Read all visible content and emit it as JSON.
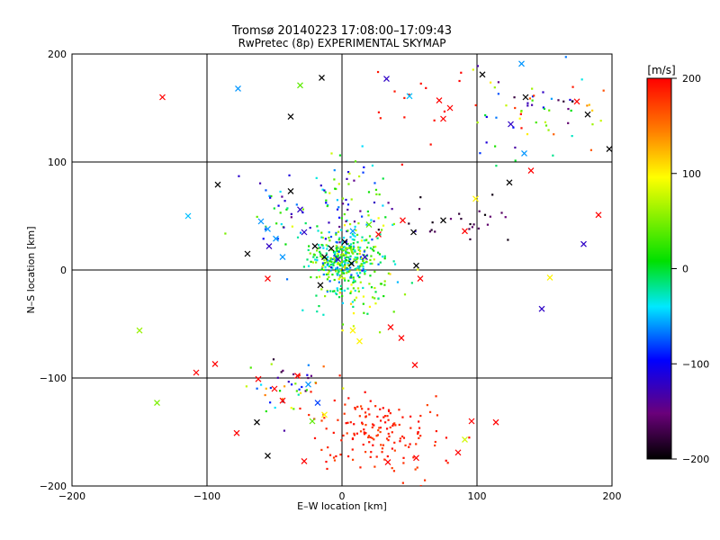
{
  "title_line1": "Tromsø 20140223 17:08:00–17:09:43",
  "title_line2": "RwPretec (8p) EXPERIMENTAL SKYMAP",
  "xlabel": "E–W location [km]",
  "ylabel": "N–S location [km]",
  "colorbar": {
    "label": "[m/s]",
    "ticks": [
      200,
      100,
      0,
      -100,
      -200
    ],
    "range": [
      -200,
      200
    ],
    "colors": [
      "#000000",
      "#6a007a",
      "#0000ff",
      "#00e8ff",
      "#00e000",
      "#ffff00",
      "#ff8000",
      "#ff0000"
    ]
  },
  "chart_data": {
    "type": "scatter",
    "xlim": [
      -200,
      200
    ],
    "ylim": [
      -200,
      200
    ],
    "xticks": [
      -200,
      -100,
      0,
      100,
      200
    ],
    "yticks": [
      -200,
      -100,
      0,
      100,
      200
    ],
    "grid": true,
    "marker_legend": "dots = small point samples, x = cross samples; color = velocity [m/s]",
    "clusters": [
      {
        "cx": 0,
        "cy": 10,
        "sx": 12,
        "sy": 12,
        "n": 320,
        "vmin": -80,
        "vmax": 80
      },
      {
        "cx": 2,
        "cy": 55,
        "sx": 22,
        "sy": 25,
        "n": 110,
        "vmin": -150,
        "vmax": 100
      },
      {
        "cx": 5,
        "cy": -20,
        "sx": 20,
        "sy": 18,
        "n": 80,
        "vmin": -50,
        "vmax": 120
      },
      {
        "cx": 25,
        "cy": -150,
        "sx": 25,
        "sy": 18,
        "n": 160,
        "vmin": 170,
        "vmax": 200
      },
      {
        "cx": -40,
        "cy": -110,
        "sx": 18,
        "sy": 12,
        "n": 45,
        "vmin": -200,
        "vmax": 200
      },
      {
        "cx": 145,
        "cy": 150,
        "sx": 28,
        "sy": 22,
        "n": 70,
        "vmin": -200,
        "vmax": 200
      },
      {
        "cx": 90,
        "cy": 45,
        "sx": 20,
        "sy": 10,
        "n": 25,
        "vmin": -200,
        "vmax": -150
      },
      {
        "cx": 55,
        "cy": 150,
        "sx": 20,
        "sy": 20,
        "n": 15,
        "vmin": 190,
        "vmax": 200
      },
      {
        "cx": -45,
        "cy": 50,
        "sx": 15,
        "sy": 15,
        "n": 25,
        "vmin": -150,
        "vmax": 50
      }
    ],
    "crosses": [
      {
        "x": -133,
        "y": 160,
        "v": 200
      },
      {
        "x": -92,
        "y": 79,
        "v": -200
      },
      {
        "x": -114,
        "y": 50,
        "v": -50
      },
      {
        "x": -150,
        "y": -56,
        "v": 60
      },
      {
        "x": -137,
        "y": -123,
        "v": 50
      },
      {
        "x": -108,
        "y": -95,
        "v": 200
      },
      {
        "x": -94,
        "y": -87,
        "v": 200
      },
      {
        "x": -77,
        "y": 168,
        "v": -60
      },
      {
        "x": -38,
        "y": 142,
        "v": -200
      },
      {
        "x": -31,
        "y": 171,
        "v": 40
      },
      {
        "x": -15,
        "y": 178,
        "v": -200
      },
      {
        "x": 33,
        "y": 177,
        "v": -120
      },
      {
        "x": 50,
        "y": 161,
        "v": -50
      },
      {
        "x": 72,
        "y": 157,
        "v": 200
      },
      {
        "x": 80,
        "y": 150,
        "v": 200
      },
      {
        "x": 75,
        "y": 140,
        "v": 200
      },
      {
        "x": 104,
        "y": 181,
        "v": -200
      },
      {
        "x": 133,
        "y": 191,
        "v": -60
      },
      {
        "x": 125,
        "y": 135,
        "v": -120
      },
      {
        "x": 136,
        "y": 160,
        "v": -200
      },
      {
        "x": 174,
        "y": 156,
        "v": 200
      },
      {
        "x": 182,
        "y": 144,
        "v": -200
      },
      {
        "x": 198,
        "y": 112,
        "v": -200
      },
      {
        "x": 140,
        "y": 92,
        "v": 200
      },
      {
        "x": 124,
        "y": 81,
        "v": -200
      },
      {
        "x": 135,
        "y": 108,
        "v": -60
      },
      {
        "x": 190,
        "y": 51,
        "v": 200
      },
      {
        "x": 179,
        "y": 24,
        "v": -120
      },
      {
        "x": 148,
        "y": -36,
        "v": -120
      },
      {
        "x": 154,
        "y": -7,
        "v": 100
      },
      {
        "x": 114,
        "y": -141,
        "v": 200
      },
      {
        "x": 96,
        "y": -140,
        "v": 200
      },
      {
        "x": 91,
        "y": -157,
        "v": 80
      },
      {
        "x": 86,
        "y": -169,
        "v": 200
      },
      {
        "x": 55,
        "y": -174,
        "v": 200
      },
      {
        "x": 34,
        "y": -178,
        "v": 200
      },
      {
        "x": -28,
        "y": -177,
        "v": 200
      },
      {
        "x": -55,
        "y": -172,
        "v": -200
      },
      {
        "x": -63,
        "y": -141,
        "v": -200
      },
      {
        "x": -78,
        "y": -151,
        "v": 200
      },
      {
        "x": -62,
        "y": -101,
        "v": 200
      },
      {
        "x": -50,
        "y": -110,
        "v": 200
      },
      {
        "x": -44,
        "y": -121,
        "v": 200
      },
      {
        "x": -25,
        "y": -106,
        "v": -60
      },
      {
        "x": -18,
        "y": -123,
        "v": -80
      },
      {
        "x": -33,
        "y": -98,
        "v": 200
      },
      {
        "x": -13,
        "y": -134,
        "v": 100
      },
      {
        "x": -22,
        "y": -140,
        "v": 40
      },
      {
        "x": 54,
        "y": -88,
        "v": 200
      },
      {
        "x": 44,
        "y": -63,
        "v": 200
      },
      {
        "x": 36,
        "y": -53,
        "v": 200
      },
      {
        "x": 8,
        "y": -56,
        "v": 100
      },
      {
        "x": 13,
        "y": -66,
        "v": 100
      },
      {
        "x": -60,
        "y": 45,
        "v": -60
      },
      {
        "x": -55,
        "y": 38,
        "v": -60
      },
      {
        "x": -49,
        "y": 29,
        "v": -60
      },
      {
        "x": -54,
        "y": 22,
        "v": -120
      },
      {
        "x": -38,
        "y": 73,
        "v": -200
      },
      {
        "x": -31,
        "y": 56,
        "v": -120
      },
      {
        "x": -28,
        "y": 35,
        "v": -120
      },
      {
        "x": -20,
        "y": 22,
        "v": -200
      },
      {
        "x": -8,
        "y": 20,
        "v": -200
      },
      {
        "x": 2,
        "y": 26,
        "v": -200
      },
      {
        "x": -3,
        "y": 10,
        "v": -120
      },
      {
        "x": 7,
        "y": 6,
        "v": -200
      },
      {
        "x": 17,
        "y": 12,
        "v": -120
      },
      {
        "x": -13,
        "y": 12,
        "v": -200
      },
      {
        "x": 8,
        "y": 36,
        "v": -60
      },
      {
        "x": 20,
        "y": 42,
        "v": 40
      },
      {
        "x": 45,
        "y": 46,
        "v": 200
      },
      {
        "x": 53,
        "y": 35,
        "v": -200
      },
      {
        "x": 55,
        "y": 4,
        "v": -200
      },
      {
        "x": 58,
        "y": -8,
        "v": 200
      },
      {
        "x": 75,
        "y": 46,
        "v": -200
      },
      {
        "x": 91,
        "y": 36,
        "v": 200
      },
      {
        "x": 99,
        "y": 66,
        "v": 100
      },
      {
        "x": -16,
        "y": -14,
        "v": -200
      },
      {
        "x": -55,
        "y": -8,
        "v": 200
      },
      {
        "x": 27,
        "y": 33,
        "v": 200
      },
      {
        "x": -70,
        "y": 15,
        "v": -200
      },
      {
        "x": -44,
        "y": 12,
        "v": -60
      }
    ]
  }
}
